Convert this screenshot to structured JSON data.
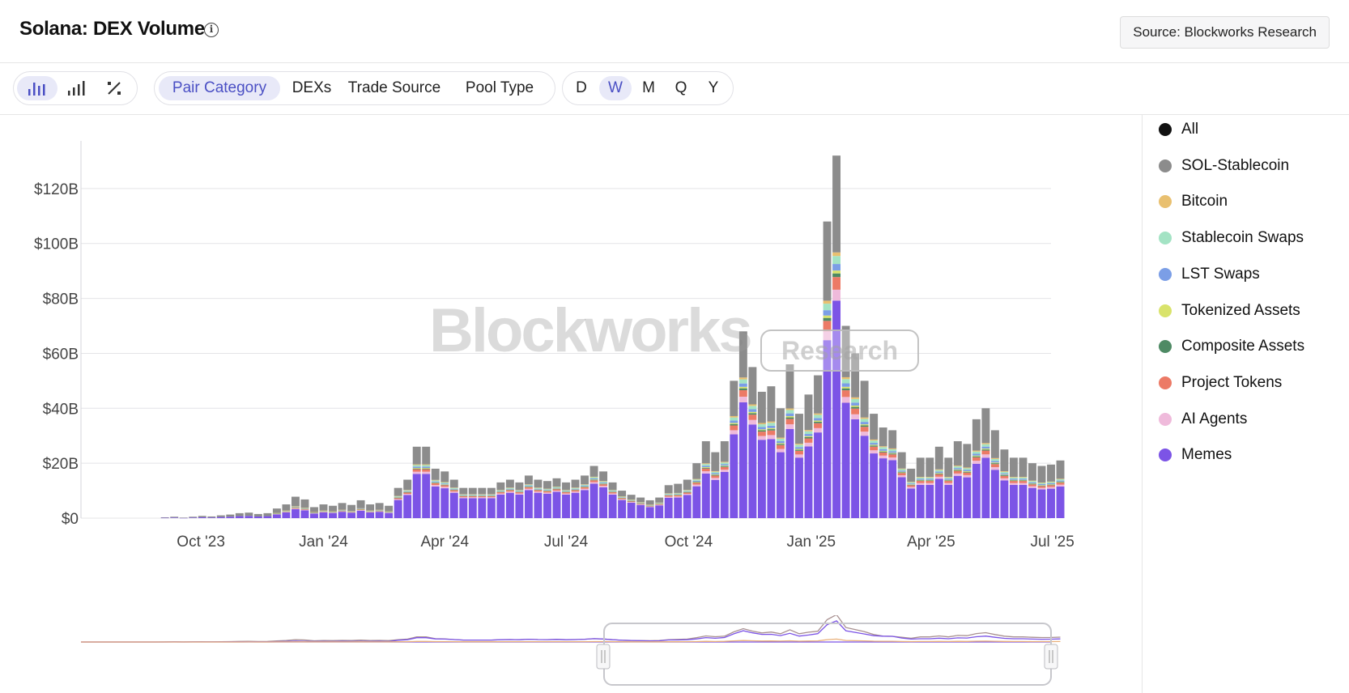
{
  "header": {
    "title": "Solana: DEX Volume",
    "info_icon": "info-icon",
    "source_label": "Source: Blockworks Research"
  },
  "toolbar": {
    "chart_type_buttons": [
      {
        "icon": "bar-chart-icon",
        "active": true
      },
      {
        "icon": "line-chart-icon",
        "active": false
      },
      {
        "icon": "percent-icon",
        "active": false
      }
    ],
    "breakdowns": [
      "Pair Category",
      "DEXs",
      "Trade Source",
      "Pool Type"
    ],
    "breakdown_active": "Pair Category",
    "intervals": [
      "D",
      "W",
      "M",
      "Q",
      "Y"
    ],
    "interval_active": "W"
  },
  "watermark": {
    "brand": "Blockworks",
    "badge": "Research"
  },
  "legend": [
    {
      "name": "All",
      "color": "#111111"
    },
    {
      "name": "SOL-Stablecoin",
      "color": "#8c8c8c"
    },
    {
      "name": "Bitcoin",
      "color": "#e9c070"
    },
    {
      "name": "Stablecoin Swaps",
      "color": "#a3e3c4"
    },
    {
      "name": "LST Swaps",
      "color": "#7b9ee6"
    },
    {
      "name": "Tokenized Assets",
      "color": "#d9e36b"
    },
    {
      "name": "Composite Assets",
      "color": "#4e8a64"
    },
    {
      "name": "Project Tokens",
      "color": "#ec7a66"
    },
    {
      "name": "AI Agents",
      "color": "#efbadb"
    },
    {
      "name": "Memes",
      "color": "#7c54e6"
    }
  ],
  "chart_data": {
    "type": "bar",
    "stacked": true,
    "interval": "weekly",
    "y_ticks": [
      "$0",
      "$20B",
      "$40B",
      "$60B",
      "$80B",
      "$100B",
      "$120B"
    ],
    "y_unit": "USD billions",
    "ylim": [
      0,
      135
    ],
    "x_range": [
      "2023-07-03",
      "2025-06-30"
    ],
    "x_ticks": [
      {
        "label": "Oct '23",
        "date": "2023-10-01"
      },
      {
        "label": "Jan '24",
        "date": "2024-01-01"
      },
      {
        "label": "Apr '24",
        "date": "2024-04-01"
      },
      {
        "label": "Jul '24",
        "date": "2024-07-01"
      },
      {
        "label": "Oct '24",
        "date": "2024-10-01"
      },
      {
        "label": "Jan '25",
        "date": "2025-01-01"
      },
      {
        "label": "Apr '25",
        "date": "2025-04-01"
      },
      {
        "label": "Jul '25",
        "date": "2025-07-01"
      }
    ],
    "grid": true,
    "legend_position": "right",
    "x_start": "2023-07-03",
    "totals": [
      0,
      0,
      0,
      0,
      0,
      0,
      0,
      0,
      0,
      0.3,
      0.5,
      0.2,
      0.5,
      0.8,
      0.6,
      1.0,
      1.3,
      1.8,
      2.0,
      1.5,
      1.8,
      3.5,
      5.0,
      7.8,
      6.8,
      4.0,
      5.0,
      4.5,
      5.5,
      4.8,
      6.5,
      5.0,
      5.5,
      4.5,
      11,
      14,
      26,
      26,
      18,
      17,
      14,
      11,
      11,
      11,
      11,
      13,
      14,
      13,
      15.5,
      14,
      13.5,
      14.5,
      13,
      14,
      15.5,
      19,
      17,
      13,
      10,
      8.5,
      7.5,
      6.5,
      7.5,
      12,
      12.5,
      14,
      20,
      28,
      24,
      28,
      50,
      68,
      55,
      46,
      48,
      40,
      56,
      38,
      45,
      52,
      108,
      132,
      70,
      60,
      50,
      38,
      33,
      32,
      24,
      18,
      22,
      22,
      26,
      22,
      28,
      27,
      36,
      40,
      32,
      25,
      22,
      22,
      20,
      19,
      19.5,
      21
    ],
    "memes_share": [
      0,
      0,
      0,
      0,
      0,
      0,
      0,
      0,
      0,
      0.4,
      0.4,
      0.4,
      0.4,
      0.4,
      0.4,
      0.4,
      0.4,
      0.4,
      0.4,
      0.4,
      0.4,
      0.4,
      0.42,
      0.42,
      0.42,
      0.42,
      0.42,
      0.42,
      0.42,
      0.42,
      0.42,
      0.42,
      0.42,
      0.42,
      0.6,
      0.6,
      0.62,
      0.62,
      0.64,
      0.64,
      0.66,
      0.66,
      0.66,
      0.66,
      0.66,
      0.66,
      0.66,
      0.66,
      0.66,
      0.66,
      0.66,
      0.66,
      0.66,
      0.66,
      0.66,
      0.66,
      0.66,
      0.66,
      0.66,
      0.66,
      0.64,
      0.62,
      0.62,
      0.62,
      0.6,
      0.6,
      0.58,
      0.58,
      0.58,
      0.6,
      0.61,
      0.62,
      0.62,
      0.62,
      0.6,
      0.6,
      0.58,
      0.58,
      0.58,
      0.6,
      0.6,
      0.6,
      0.6,
      0.6,
      0.6,
      0.62,
      0.66,
      0.66,
      0.62,
      0.6,
      0.55,
      0.55,
      0.55,
      0.55,
      0.55,
      0.55,
      0.55,
      0.55,
      0.55,
      0.55,
      0.55,
      0.55,
      0.55,
      0.55,
      0.55,
      0.55
    ]
  }
}
